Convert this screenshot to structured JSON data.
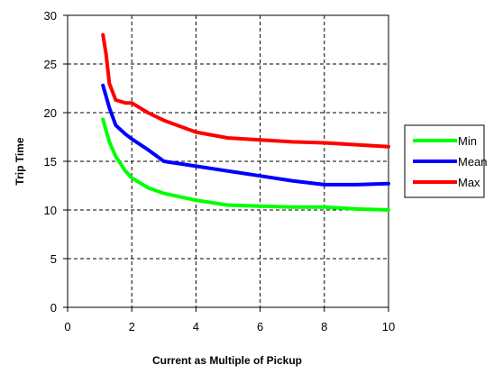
{
  "chart_data": {
    "type": "line",
    "title": "",
    "xlabel": "Current as Multiple of Pickup",
    "ylabel": "Trip Time",
    "xlim": [
      0,
      10
    ],
    "ylim": [
      0,
      30
    ],
    "xticks": [
      0,
      2,
      4,
      6,
      8,
      10
    ],
    "yticks": [
      0,
      5,
      10,
      15,
      20,
      25,
      30
    ],
    "grid": true,
    "legend_position": "right",
    "series": [
      {
        "name": "Min",
        "color": "#00ff00",
        "x": [
          1.1,
          1.3,
          1.5,
          1.8,
          2.0,
          2.5,
          3.0,
          4.0,
          5.0,
          6.0,
          7.0,
          8.0,
          9.0,
          10.0
        ],
        "y": [
          19.3,
          17.0,
          15.5,
          14.0,
          13.3,
          12.3,
          11.7,
          11.0,
          10.5,
          10.4,
          10.3,
          10.3,
          10.1,
          10.0
        ]
      },
      {
        "name": "Mean",
        "color": "#0000ff",
        "x": [
          1.1,
          1.3,
          1.5,
          1.8,
          2.0,
          2.5,
          3.0,
          4.0,
          5.0,
          6.0,
          7.0,
          8.0,
          9.0,
          10.0
        ],
        "y": [
          22.8,
          20.5,
          18.7,
          17.8,
          17.3,
          16.2,
          15.0,
          14.5,
          14.0,
          13.5,
          13.0,
          12.6,
          12.6,
          12.7
        ]
      },
      {
        "name": "Max",
        "color": "#ff0000",
        "x": [
          1.1,
          1.2,
          1.3,
          1.5,
          1.8,
          2.0,
          2.5,
          3.0,
          4.0,
          5.0,
          6.0,
          7.0,
          8.0,
          9.0,
          10.0
        ],
        "y": [
          28.0,
          26.0,
          23.0,
          21.3,
          21.0,
          21.0,
          20.0,
          19.2,
          18.0,
          17.4,
          17.2,
          17.0,
          16.9,
          16.7,
          16.5
        ]
      }
    ]
  }
}
